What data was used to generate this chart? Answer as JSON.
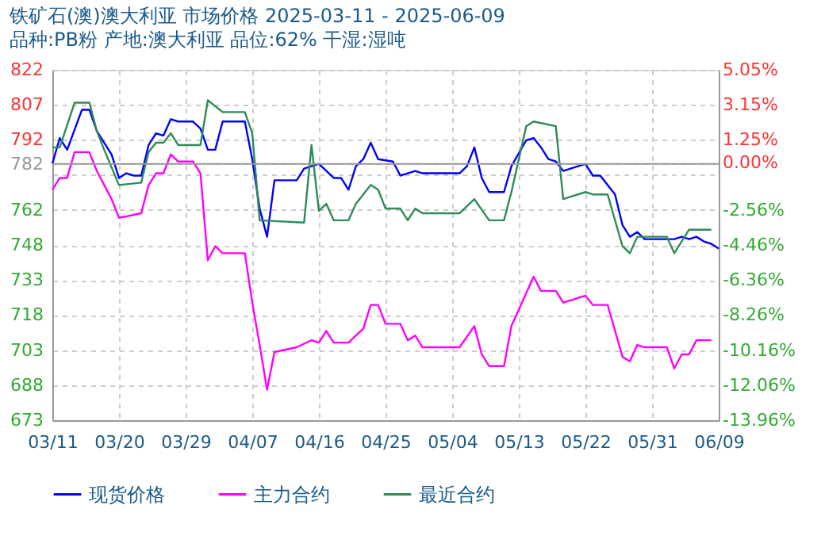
{
  "chart_data": {
    "type": "line",
    "title": "铁矿石(澳)澳大利亚 市场价格 2025-03-11 - 2025-06-09",
    "subtitle": "品种:PB粉 产地:澳大利亚 品位:62% 干湿:湿吨",
    "series": [
      {
        "name": "现货价格",
        "color": "#0000ff",
        "x": [
          "2025-03-11",
          "2025-03-12",
          "2025-03-13",
          "2025-03-15",
          "2025-03-16",
          "2025-03-17",
          "2025-03-19",
          "2025-03-20",
          "2025-03-21",
          "2025-03-22",
          "2025-03-23",
          "2025-03-24",
          "2025-03-25",
          "2025-03-26",
          "2025-03-27",
          "2025-03-28",
          "2025-03-30",
          "2025-03-31",
          "2025-04-01",
          "2025-04-02",
          "2025-04-03",
          "2025-04-06",
          "2025-04-07",
          "2025-04-08",
          "2025-04-09",
          "2025-04-10",
          "2025-04-13",
          "2025-04-14",
          "2025-04-16",
          "2025-04-18",
          "2025-04-19",
          "2025-04-20",
          "2025-04-21",
          "2025-04-22",
          "2025-04-23",
          "2025-04-24",
          "2025-04-26",
          "2025-04-27",
          "2025-04-29",
          "2025-04-30",
          "2025-05-05",
          "2025-05-06",
          "2025-05-07",
          "2025-05-08",
          "2025-05-09",
          "2025-05-11",
          "2025-05-12",
          "2025-05-14",
          "2025-05-15",
          "2025-05-16",
          "2025-05-17",
          "2025-05-18",
          "2025-05-19",
          "2025-05-20",
          "2025-05-22",
          "2025-05-23",
          "2025-05-24",
          "2025-05-26",
          "2025-05-27",
          "2025-05-28",
          "2025-05-29",
          "2025-05-30",
          "2025-06-03",
          "2025-06-04",
          "2025-06-05",
          "2025-06-06",
          "2025-06-07",
          "2025-06-08",
          "2025-06-09"
        ],
        "values": [
          782,
          793,
          788,
          805,
          805,
          796,
          786,
          776,
          778,
          777,
          777,
          790,
          795,
          794,
          801,
          800,
          800,
          797,
          788,
          788,
          800,
          800,
          784,
          763,
          751,
          775,
          775,
          780,
          782,
          776,
          776,
          771,
          781,
          784,
          791,
          784,
          783,
          777,
          779,
          778,
          778,
          781,
          789,
          776,
          770,
          770,
          781,
          792,
          793,
          789,
          784,
          783,
          779,
          780,
          782,
          777,
          777,
          769,
          756,
          751,
          753,
          750,
          750,
          751,
          750,
          751,
          749,
          748,
          746
        ]
      },
      {
        "name": "主力合约",
        "color": "#ff00ff",
        "x": [
          "2025-03-11",
          "2025-03-12",
          "2025-03-13",
          "2025-03-14",
          "2025-03-16",
          "2025-03-17",
          "2025-03-19",
          "2025-03-20",
          "2025-03-23",
          "2025-03-24",
          "2025-03-25",
          "2025-03-26",
          "2025-03-27",
          "2025-03-28",
          "2025-03-30",
          "2025-03-31",
          "2025-04-01",
          "2025-04-02",
          "2025-04-03",
          "2025-04-06",
          "2025-04-07",
          "2025-04-08",
          "2025-04-09",
          "2025-04-10",
          "2025-04-13",
          "2025-04-15",
          "2025-04-16",
          "2025-04-17",
          "2025-04-18",
          "2025-04-20",
          "2025-04-22",
          "2025-04-23",
          "2025-04-24",
          "2025-04-25",
          "2025-04-27",
          "2025-04-28",
          "2025-04-29",
          "2025-04-30",
          "2025-05-05",
          "2025-05-07",
          "2025-05-08",
          "2025-05-09",
          "2025-05-11",
          "2025-05-12",
          "2025-05-15",
          "2025-05-16",
          "2025-05-18",
          "2025-05-19",
          "2025-05-22",
          "2025-05-23",
          "2025-05-25",
          "2025-05-27",
          "2025-05-28",
          "2025-05-29",
          "2025-05-30",
          "2025-06-02",
          "2025-06-03",
          "2025-06-04",
          "2025-06-05",
          "2025-06-06",
          "2025-06-08"
        ],
        "values": [
          771,
          776,
          776,
          787,
          787,
          779,
          767,
          759,
          761,
          773,
          778,
          778,
          786,
          783,
          783,
          778,
          741,
          747,
          744,
          744,
          723,
          705,
          686,
          702,
          704,
          707,
          706,
          711,
          706,
          706,
          712,
          722,
          722,
          714,
          714,
          707,
          709,
          704,
          704,
          713,
          701,
          696,
          696,
          713,
          734,
          728,
          728,
          723,
          726,
          722,
          722,
          700,
          698,
          705,
          704,
          704,
          695,
          701,
          701,
          707,
          707
        ]
      },
      {
        "name": "最近合约",
        "color": "#2e8b57",
        "x": [
          "2025-03-11",
          "2025-03-12",
          "2025-03-14",
          "2025-03-16",
          "2025-03-17",
          "2025-03-18",
          "2025-03-20",
          "2025-03-23",
          "2025-03-24",
          "2025-03-25",
          "2025-03-26",
          "2025-03-27",
          "2025-03-28",
          "2025-03-31",
          "2025-04-01",
          "2025-04-03",
          "2025-04-06",
          "2025-04-07",
          "2025-04-08",
          "2025-04-14",
          "2025-04-15",
          "2025-04-16",
          "2025-04-17",
          "2025-04-18",
          "2025-04-20",
          "2025-04-21",
          "2025-04-23",
          "2025-04-24",
          "2025-04-25",
          "2025-04-27",
          "2025-04-28",
          "2025-04-29",
          "2025-04-30",
          "2025-05-05",
          "2025-05-07",
          "2025-05-09",
          "2025-05-11",
          "2025-05-12",
          "2025-05-14",
          "2025-05-15",
          "2025-05-18",
          "2025-05-19",
          "2025-05-20",
          "2025-05-22",
          "2025-05-23",
          "2025-05-25",
          "2025-05-27",
          "2025-05-28",
          "2025-05-29",
          "2025-06-02",
          "2025-06-03",
          "2025-06-05",
          "2025-06-06",
          "2025-06-08"
        ],
        "values": [
          789,
          789,
          808,
          808,
          796,
          788,
          773,
          774,
          787,
          791,
          791,
          795,
          790,
          790,
          809,
          804,
          804,
          795,
          758,
          757,
          790,
          762,
          765,
          758,
          758,
          765,
          773,
          771,
          763,
          763,
          758,
          763,
          761,
          761,
          767,
          758,
          758,
          770,
          798,
          800,
          798,
          767,
          768,
          770,
          769,
          769,
          747,
          744,
          751,
          751,
          744,
          754,
          754,
          754
        ]
      }
    ],
    "xlim": [
      "2025-03-11",
      "2025-06-09"
    ],
    "xticks": [
      {
        "value": "2025-03-11",
        "label": "03/11"
      },
      {
        "value": "2025-03-20",
        "label": "03/20"
      },
      {
        "value": "2025-03-29",
        "label": "03/29"
      },
      {
        "value": "2025-04-07",
        "label": "04/07"
      },
      {
        "value": "2025-04-16",
        "label": "04/16"
      },
      {
        "value": "2025-04-25",
        "label": "04/25"
      },
      {
        "value": "2025-05-04",
        "label": "05/04"
      },
      {
        "value": "2025-05-13",
        "label": "05/13"
      },
      {
        "value": "2025-05-22",
        "label": "05/22"
      },
      {
        "value": "2025-05-31",
        "label": "05/31"
      },
      {
        "value": "2025-06-09",
        "label": "06/09"
      }
    ],
    "ylim": [
      673,
      822
    ],
    "yticks": [
      822,
      {
        "value": 807.1,
        "label": "807"
      },
      {
        "value": 792.2,
        "label": "792"
      },
      782,
      {
        "value": 777.3,
        "label": null
      },
      {
        "value": 762.4,
        "label": "762"
      },
      {
        "value": 747.5,
        "label": "748"
      },
      {
        "value": 732.6,
        "label": "733"
      },
      {
        "value": 717.7,
        "label": "718"
      },
      {
        "value": 702.8,
        "label": "703"
      },
      {
        "value": 687.9,
        "label": "688"
      },
      673
    ],
    "y2lim": [
      -13.96,
      5.05
    ],
    "y2ticks": [
      {
        "value": 5.05,
        "label": "5.05%"
      },
      {
        "value": 3.15,
        "label": "3.15%"
      },
      {
        "value": 1.25,
        "label": "1.25%"
      },
      {
        "value": 0,
        "label": "0.00%"
      },
      {
        "value": -2.56,
        "label": "-2.56%"
      },
      {
        "value": -4.46,
        "label": "-4.46%"
      },
      {
        "value": -6.36,
        "label": "-6.36%"
      },
      {
        "value": -8.26,
        "label": "-8.26%"
      },
      {
        "value": -10.16,
        "label": "-10.16%"
      },
      {
        "value": -12.06,
        "label": "-12.06%"
      },
      {
        "value": -13.96,
        "label": "-13.96%"
      }
    ],
    "ref_lines": [
      {
        "axis": "y",
        "value": 782,
        "color": "#999999",
        "line_style": "solid"
      }
    ],
    "grid": true,
    "legend": "bottom",
    "marker": "none",
    "line_style": "solid"
  }
}
